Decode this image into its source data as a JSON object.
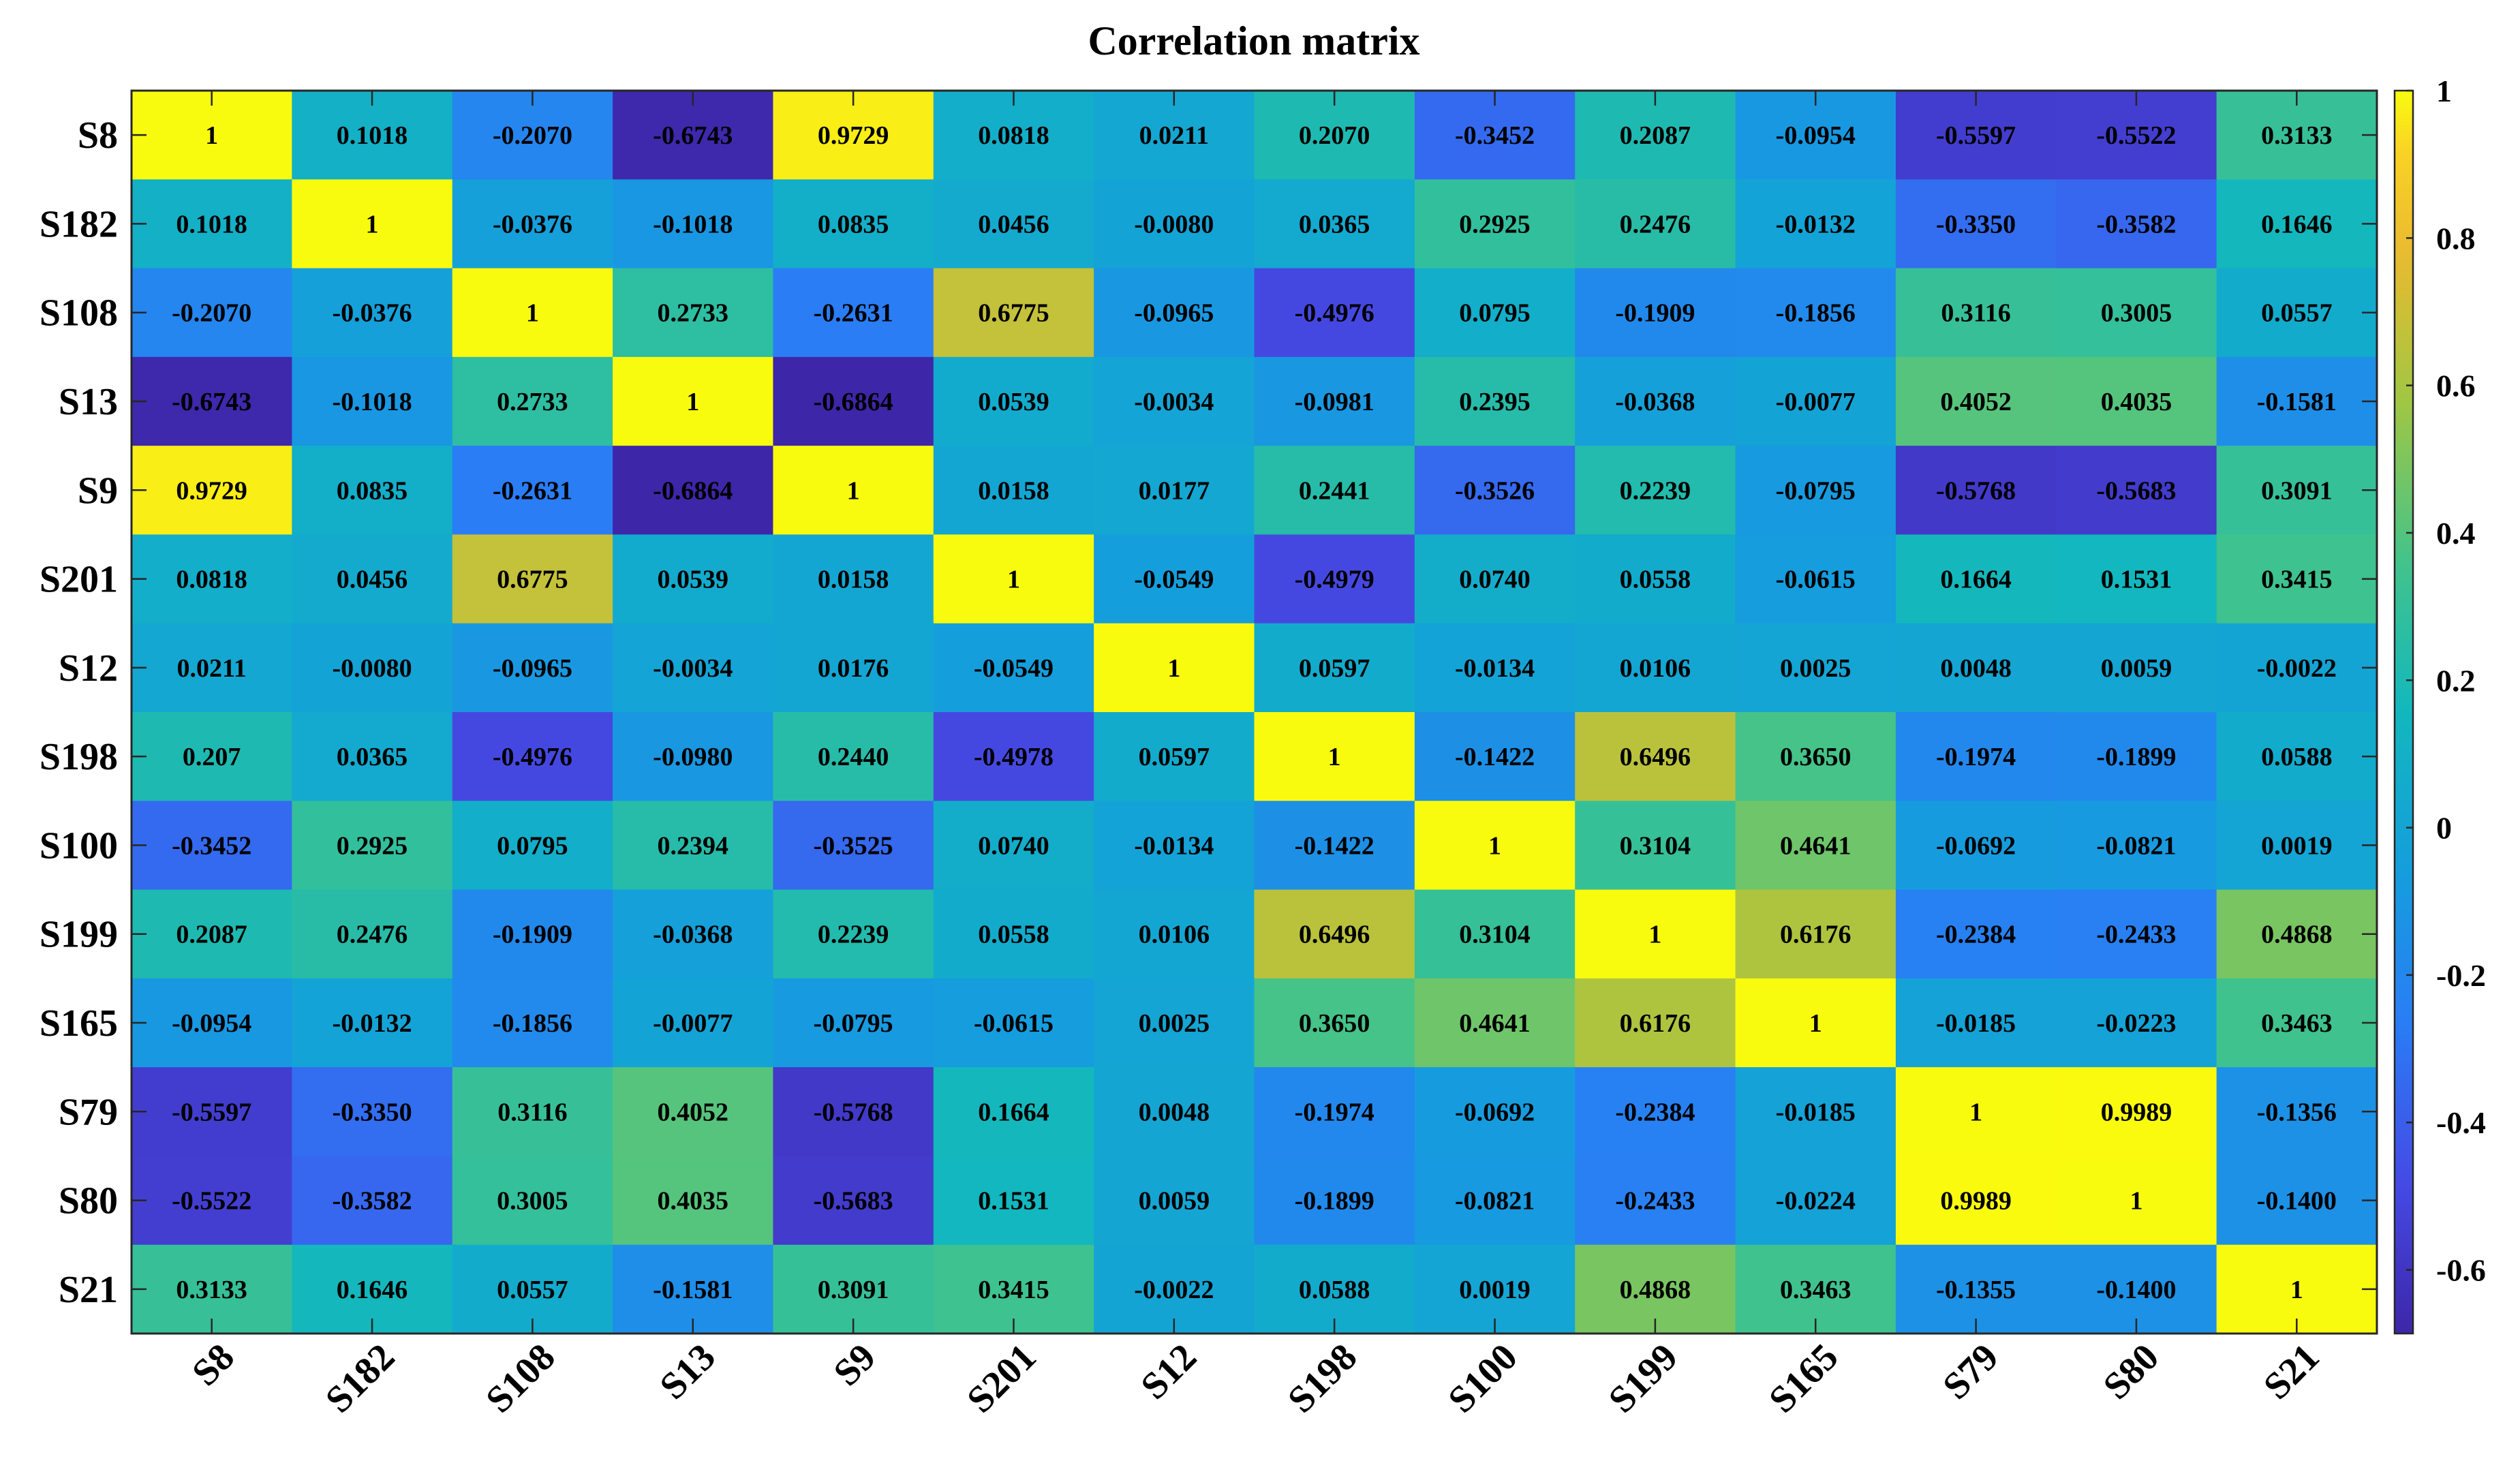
{
  "chart_data": {
    "type": "heatmap",
    "title": "Correlation matrix",
    "row_labels": [
      "S8",
      "S182",
      "S108",
      "S13",
      "S9",
      "S201",
      "S12",
      "S198",
      "S100",
      "S199",
      "S165",
      "S79",
      "S80",
      "S21"
    ],
    "col_labels": [
      "S8",
      "S182",
      "S108",
      "S13",
      "S9",
      "S201",
      "S12",
      "S198",
      "S100",
      "S199",
      "S165",
      "S79",
      "S80",
      "S21"
    ],
    "values": [
      [
        1,
        0.1018,
        -0.207,
        -0.6743,
        0.9729,
        0.0818,
        0.0211,
        0.207,
        -0.3452,
        0.2087,
        -0.0954,
        -0.5597,
        -0.5522,
        0.3133
      ],
      [
        0.1018,
        1,
        -0.0376,
        -0.1018,
        0.0835,
        0.0456,
        -0.008,
        0.0365,
        0.2925,
        0.2476,
        -0.0132,
        -0.335,
        -0.3582,
        0.1646
      ],
      [
        -0.207,
        -0.0376,
        1,
        0.2733,
        -0.2631,
        0.6775,
        -0.0965,
        -0.4976,
        0.0795,
        -0.1909,
        -0.1856,
        0.3116,
        0.3005,
        0.0557
      ],
      [
        -0.6743,
        -0.1018,
        0.2733,
        1,
        -0.6864,
        0.0539,
        -0.0034,
        -0.0981,
        0.2395,
        -0.0368,
        -0.0077,
        0.4052,
        0.4035,
        -0.1581
      ],
      [
        0.9729,
        0.0835,
        -0.2631,
        -0.6864,
        1,
        0.0158,
        0.0177,
        0.2441,
        -0.3526,
        0.2239,
        -0.0795,
        -0.5768,
        -0.5683,
        0.3091
      ],
      [
        0.0818,
        0.0456,
        0.6775,
        0.0539,
        0.0158,
        1,
        -0.0549,
        -0.4979,
        0.074,
        0.0558,
        -0.0615,
        0.1664,
        0.1531,
        0.3415
      ],
      [
        0.0211,
        -0.008,
        -0.0965,
        -0.0034,
        0.0176,
        -0.0549,
        1,
        0.0597,
        -0.0134,
        0.0106,
        0.0025,
        0.0048,
        0.0059,
        -0.0022
      ],
      [
        0.207,
        0.0365,
        -0.4976,
        -0.098,
        0.244,
        -0.4978,
        0.0597,
        1,
        -0.1422,
        0.6496,
        0.365,
        -0.1974,
        -0.1899,
        0.0588
      ],
      [
        -0.3452,
        0.2925,
        0.0795,
        0.2394,
        -0.3525,
        0.074,
        -0.0134,
        -0.1422,
        1,
        0.3104,
        0.4641,
        -0.0692,
        -0.0821,
        0.0019
      ],
      [
        0.2087,
        0.2476,
        -0.1909,
        -0.0368,
        0.2239,
        0.0558,
        0.0106,
        0.6496,
        0.3104,
        1,
        0.6176,
        -0.2384,
        -0.2433,
        0.4868
      ],
      [
        -0.0954,
        -0.0132,
        -0.1856,
        -0.0077,
        -0.0795,
        -0.0615,
        0.0025,
        0.365,
        0.4641,
        0.6176,
        1,
        -0.0185,
        -0.0223,
        0.3463
      ],
      [
        -0.5597,
        -0.335,
        0.3116,
        0.4052,
        -0.5768,
        0.1664,
        0.0048,
        -0.1974,
        -0.0692,
        -0.2384,
        -0.0185,
        1,
        0.9989,
        -0.1356
      ],
      [
        -0.5522,
        -0.3582,
        0.3005,
        0.4035,
        -0.5683,
        0.1531,
        0.0059,
        -0.1899,
        -0.0821,
        -0.2433,
        -0.0224,
        0.9989,
        1,
        -0.14
      ],
      [
        0.3133,
        0.1646,
        0.0557,
        -0.1581,
        0.3091,
        0.3415,
        -0.0022,
        0.0588,
        0.0019,
        0.4868,
        0.3463,
        -0.1355,
        -0.14,
        1
      ]
    ],
    "cell_labels": [
      [
        "1",
        "0.1018",
        "-0.2070",
        "-0.6743",
        "0.9729",
        "0.0818",
        "0.0211",
        "0.2070",
        "-0.3452",
        "0.2087",
        "-0.0954",
        "-0.5597",
        "-0.5522",
        "0.3133"
      ],
      [
        "0.1018",
        "1",
        "-0.0376",
        "-0.1018",
        "0.0835",
        "0.0456",
        "-0.0080",
        "0.0365",
        "0.2925",
        "0.2476",
        "-0.0132",
        "-0.3350",
        "-0.3582",
        "0.1646"
      ],
      [
        "-0.2070",
        "-0.0376",
        "1",
        "0.2733",
        "-0.2631",
        "0.6775",
        "-0.0965",
        "-0.4976",
        "0.0795",
        "-0.1909",
        "-0.1856",
        "0.3116",
        "0.3005",
        "0.0557"
      ],
      [
        "-0.6743",
        "-0.1018",
        "0.2733",
        "1",
        "-0.6864",
        "0.0539",
        "-0.0034",
        "-0.0981",
        "0.2395",
        "-0.0368",
        "-0.0077",
        "0.4052",
        "0.4035",
        "-0.1581"
      ],
      [
        "0.9729",
        "0.0835",
        "-0.2631",
        "-0.6864",
        "1",
        "0.0158",
        "0.0177",
        "0.2441",
        "-0.3526",
        "0.2239",
        "-0.0795",
        "-0.5768",
        "-0.5683",
        "0.3091"
      ],
      [
        "0.0818",
        "0.0456",
        "0.6775",
        "0.0539",
        "0.0158",
        "1",
        "-0.0549",
        "-0.4979",
        "0.0740",
        "0.0558",
        "-0.0615",
        "0.1664",
        "0.1531",
        "0.3415"
      ],
      [
        "0.0211",
        "-0.0080",
        "-0.0965",
        "-0.0034",
        "0.0176",
        "-0.0549",
        "1",
        "0.0597",
        "-0.0134",
        "0.0106",
        "0.0025",
        "0.0048",
        "0.0059",
        "-0.0022"
      ],
      [
        "0.207",
        "0.0365",
        "-0.4976",
        "-0.0980",
        "0.2440",
        "-0.4978",
        "0.0597",
        "1",
        "-0.1422",
        "0.6496",
        "0.3650",
        "-0.1974",
        "-0.1899",
        "0.0588"
      ],
      [
        "-0.3452",
        "0.2925",
        "0.0795",
        "0.2394",
        "-0.3525",
        "0.0740",
        "-0.0134",
        "-0.1422",
        "1",
        "0.3104",
        "0.4641",
        "-0.0692",
        "-0.0821",
        "0.0019"
      ],
      [
        "0.2087",
        "0.2476",
        "-0.1909",
        "-0.0368",
        "0.2239",
        "0.0558",
        "0.0106",
        "0.6496",
        "0.3104",
        "1",
        "0.6176",
        "-0.2384",
        "-0.2433",
        "0.4868"
      ],
      [
        "-0.0954",
        "-0.0132",
        "-0.1856",
        "-0.0077",
        "-0.0795",
        "-0.0615",
        "0.0025",
        "0.3650",
        "0.4641",
        "0.6176",
        "1",
        "-0.0185",
        "-0.0223",
        "0.3463"
      ],
      [
        "-0.5597",
        "-0.3350",
        "0.3116",
        "0.4052",
        "-0.5768",
        "0.1664",
        "0.0048",
        "-0.1974",
        "-0.0692",
        "-0.2384",
        "-0.0185",
        "1",
        "0.9989",
        "-0.1356"
      ],
      [
        "-0.5522",
        "-0.3582",
        "0.3005",
        "0.4035",
        "-0.5683",
        "0.1531",
        "0.0059",
        "-0.1899",
        "-0.0821",
        "-0.2433",
        "-0.0224",
        "0.9989",
        "1",
        "-0.1400"
      ],
      [
        "0.3133",
        "0.1646",
        "0.0557",
        "-0.1581",
        "0.3091",
        "0.3415",
        "-0.0022",
        "0.0588",
        "0.0019",
        "0.4868",
        "0.3463",
        "-0.1355",
        "-0.1400",
        "1"
      ]
    ],
    "colorbar": {
      "range": [
        -0.6864,
        1
      ],
      "ticks": [
        1,
        0.8,
        0.6,
        0.4,
        0.2,
        0,
        -0.2,
        -0.4,
        -0.6
      ],
      "tick_labels": [
        "1",
        "0.8",
        "0.6",
        "0.4",
        "0.2",
        "0",
        "-0.2",
        "-0.4",
        "-0.6"
      ],
      "colormap": "parula",
      "placement": "right"
    }
  }
}
